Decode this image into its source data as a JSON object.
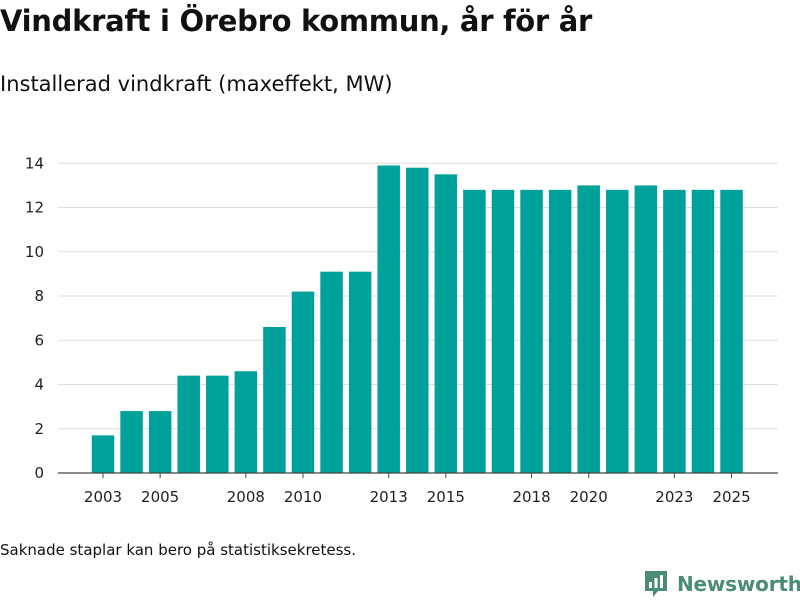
{
  "header": {
    "title": "Vindkraft i Örebro kommun, år för år",
    "subtitle": "Installerad vindkraft (maxeffekt, MW)"
  },
  "footer": {
    "note": "Saknade staplar kan bero på statistiksekretess.",
    "brand": "Newsworthy"
  },
  "colors": {
    "bar": "#00a19a",
    "grid": "#dddddd",
    "axis": "#444444",
    "brand": "#4a8c77"
  },
  "chart_data": {
    "type": "bar",
    "title": "Vindkraft i Örebro kommun, år för år",
    "subtitle": "Installerad vindkraft (maxeffekt, MW)",
    "xlabel": "",
    "ylabel": "",
    "categories": [
      2003,
      2004,
      2005,
      2006,
      2007,
      2008,
      2009,
      2010,
      2011,
      2012,
      2013,
      2014,
      2015,
      2016,
      2017,
      2018,
      2019,
      2020,
      2021,
      2022,
      2023,
      2024,
      2025
    ],
    "values": [
      1.7,
      2.8,
      2.8,
      4.4,
      4.4,
      4.6,
      6.6,
      8.2,
      9.1,
      9.1,
      13.9,
      13.8,
      13.5,
      12.8,
      12.8,
      12.8,
      12.8,
      13.0,
      12.8,
      13.0,
      12.8,
      12.8,
      12.8
    ],
    "x_tick_labels": [
      "2003",
      "2005",
      "2008",
      "2010",
      "2013",
      "2015",
      "2018",
      "2020",
      "2023",
      "2025"
    ],
    "y_ticks": [
      0,
      2,
      4,
      6,
      8,
      10,
      12,
      14
    ],
    "ylim": [
      0,
      14.6
    ],
    "grid": true
  }
}
